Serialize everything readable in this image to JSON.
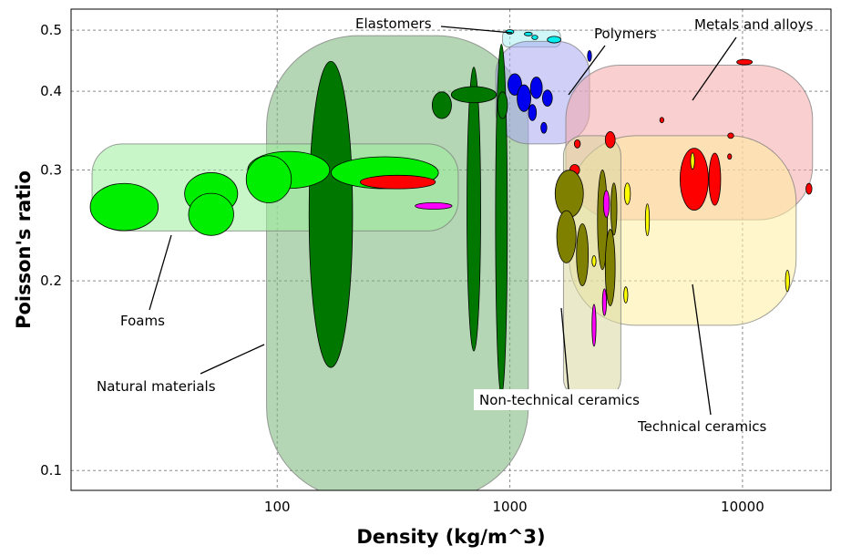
{
  "chart_data": {
    "type": "scatter",
    "title": "",
    "xlabel": "Density (kg/m^3)",
    "ylabel": "Poisson's ratio",
    "x_scale": "log",
    "y_scale": "log",
    "xlim": [
      13,
      24000
    ],
    "ylim": [
      0.093,
      0.54
    ],
    "x_ticks": [
      {
        "value": 100,
        "label": "100"
      },
      {
        "value": 1000,
        "label": "1000"
      },
      {
        "value": 10000,
        "label": "10000"
      }
    ],
    "y_ticks": [
      {
        "value": 0.1,
        "label": "0.1"
      },
      {
        "value": 0.2,
        "label": "0.2"
      },
      {
        "value": 0.3,
        "label": "0.3"
      },
      {
        "value": 0.4,
        "label": "0.4"
      },
      {
        "value": 0.5,
        "label": "0.5"
      }
    ],
    "grid": true,
    "legend": "none",
    "families": [
      {
        "name": "Natural materials",
        "color": "#78b478",
        "density_range": [
          90,
          1200
        ],
        "poisson_range": [
          0.09,
          0.49
        ]
      },
      {
        "name": "Foams",
        "color": "#9aee9a",
        "density_range": [
          16,
          600
        ],
        "poisson_range": [
          0.24,
          0.33
        ]
      },
      {
        "name": "Elastomers",
        "color": "#a8f0f0",
        "density_range": [
          930,
          1650
        ],
        "poisson_range": [
          0.47,
          0.5
        ]
      },
      {
        "name": "Polymers",
        "color": "#a8a8f0",
        "density_range": [
          870,
          2200
        ],
        "poisson_range": [
          0.33,
          0.48
        ]
      },
      {
        "name": "Metals and alloys",
        "color": "#f5a8a8",
        "density_range": [
          1740,
          20000
        ],
        "poisson_range": [
          0.25,
          0.44
        ]
      },
      {
        "name": "Technical ceramics",
        "color": "#fff0a0",
        "density_range": [
          1800,
          17000
        ],
        "poisson_range": [
          0.17,
          0.34
        ]
      },
      {
        "name": "Non-technical ceramics",
        "color": "#d8d8a0",
        "density_range": [
          1700,
          3000
        ],
        "poisson_range": [
          0.13,
          0.34
        ]
      }
    ],
    "materials": [
      {
        "group": "Natural materials",
        "color": "#007800",
        "x": 170,
        "y": 0.255,
        "xr": 1.24,
        "yr": 1.75
      },
      {
        "group": "Natural materials",
        "color": "#007800",
        "x": 700,
        "y": 0.26,
        "xr": 1.07,
        "yr": 1.68
      },
      {
        "group": "Natural materials",
        "color": "#007800",
        "x": 920,
        "y": 0.25,
        "xr": 1.06,
        "yr": 1.9
      },
      {
        "group": "Natural materials",
        "color": "#007800",
        "x": 700,
        "y": 0.395,
        "xr": 1.25,
        "yr": 1.03
      },
      {
        "group": "Natural materials",
        "color": "#007800",
        "x": 510,
        "y": 0.38,
        "xr": 1.1,
        "yr": 1.05
      },
      {
        "group": "Natural materials",
        "color": "#007800",
        "x": 930,
        "y": 0.38,
        "xr": 1.05,
        "yr": 1.05
      },
      {
        "group": "Foams",
        "color": "#00ee00",
        "x": 22,
        "y": 0.262,
        "xr": 1.4,
        "yr": 1.09
      },
      {
        "group": "Foams",
        "color": "#00ee00",
        "x": 52,
        "y": 0.275,
        "xr": 1.3,
        "yr": 1.08
      },
      {
        "group": "Foams",
        "color": "#00ee00",
        "x": 52,
        "y": 0.255,
        "xr": 1.25,
        "yr": 1.08
      },
      {
        "group": "Foams",
        "color": "#00ee00",
        "x": 112,
        "y": 0.3,
        "xr": 1.5,
        "yr": 1.07
      },
      {
        "group": "Foams",
        "color": "#00ee00",
        "x": 92,
        "y": 0.29,
        "xr": 1.25,
        "yr": 1.09
      },
      {
        "group": "Foams",
        "color": "#00ee00",
        "x": 290,
        "y": 0.297,
        "xr": 1.7,
        "yr": 1.06
      },
      {
        "group": "Foams",
        "color": "#ff0000",
        "x": 330,
        "y": 0.287,
        "xr": 1.45,
        "yr": 1.025
      },
      {
        "group": "Foams",
        "color": "#ff00ff",
        "x": 470,
        "y": 0.263,
        "xr": 1.2,
        "yr": 1.012
      },
      {
        "group": "Elastomers",
        "color": "#00eeee",
        "x": 1000,
        "y": 0.497,
        "xr": 1.04,
        "yr": 1.008
      },
      {
        "group": "Elastomers",
        "color": "#00eeee",
        "x": 1200,
        "y": 0.493,
        "xr": 1.04,
        "yr": 1.006
      },
      {
        "group": "Elastomers",
        "color": "#00eeee",
        "x": 1280,
        "y": 0.487,
        "xr": 1.03,
        "yr": 1.008
      },
      {
        "group": "Elastomers",
        "color": "#00eeee",
        "x": 1550,
        "y": 0.483,
        "xr": 1.07,
        "yr": 1.012
      },
      {
        "group": "Polymers",
        "color": "#0000ee",
        "x": 1050,
        "y": 0.41,
        "xr": 1.07,
        "yr": 1.04
      },
      {
        "group": "Polymers",
        "color": "#0000ee",
        "x": 1150,
        "y": 0.39,
        "xr": 1.07,
        "yr": 1.05
      },
      {
        "group": "Polymers",
        "color": "#0000ee",
        "x": 1300,
        "y": 0.405,
        "xr": 1.06,
        "yr": 1.04
      },
      {
        "group": "Polymers",
        "color": "#0000ee",
        "x": 1450,
        "y": 0.39,
        "xr": 1.05,
        "yr": 1.03
      },
      {
        "group": "Polymers",
        "color": "#0000ee",
        "x": 1250,
        "y": 0.37,
        "xr": 1.04,
        "yr": 1.03
      },
      {
        "group": "Polymers",
        "color": "#0000ee",
        "x": 1400,
        "y": 0.35,
        "xr": 1.03,
        "yr": 1.02
      },
      {
        "group": "Polymers",
        "color": "#0000ee",
        "x": 2200,
        "y": 0.455,
        "xr": 1.02,
        "yr": 1.02
      },
      {
        "group": "Metals and alloys",
        "color": "#ff0000",
        "x": 6200,
        "y": 0.29,
        "xr": 1.15,
        "yr": 1.12
      },
      {
        "group": "Metals and alloys",
        "color": "#ff0000",
        "x": 7600,
        "y": 0.29,
        "xr": 1.06,
        "yr": 1.1
      },
      {
        "group": "Metals and alloys",
        "color": "#ff0000",
        "x": 2700,
        "y": 0.335,
        "xr": 1.05,
        "yr": 1.03
      },
      {
        "group": "Metals and alloys",
        "color": "#ff0000",
        "x": 1950,
        "y": 0.33,
        "xr": 1.03,
        "yr": 1.015
      },
      {
        "group": "Metals and alloys",
        "color": "#ff0000",
        "x": 1900,
        "y": 0.3,
        "xr": 1.05,
        "yr": 1.02
      },
      {
        "group": "Metals and alloys",
        "color": "#ff0000",
        "x": 10200,
        "y": 0.445,
        "xr": 1.08,
        "yr": 1.01
      },
      {
        "group": "Metals and alloys",
        "color": "#ff0000",
        "x": 8900,
        "y": 0.34,
        "xr": 1.03,
        "yr": 1.01
      },
      {
        "group": "Metals and alloys",
        "color": "#ff0000",
        "x": 19300,
        "y": 0.28,
        "xr": 1.03,
        "yr": 1.02
      },
      {
        "group": "Metals and alloys",
        "color": "#ff0000",
        "x": 8800,
        "y": 0.315,
        "xr": 1.02,
        "yr": 1.01
      },
      {
        "group": "Metals and alloys",
        "color": "#ff0000",
        "x": 4500,
        "y": 0.36,
        "xr": 1.02,
        "yr": 1.01
      },
      {
        "group": "Technical ceramics",
        "color": "#ffff00",
        "x": 3200,
        "y": 0.275,
        "xr": 1.03,
        "yr": 1.04
      },
      {
        "group": "Technical ceramics",
        "color": "#ffff00",
        "x": 3900,
        "y": 0.25,
        "xr": 1.02,
        "yr": 1.06
      },
      {
        "group": "Technical ceramics",
        "color": "#ffff00",
        "x": 15600,
        "y": 0.2,
        "xr": 1.02,
        "yr": 1.04
      },
      {
        "group": "Technical ceramics",
        "color": "#ffff00",
        "x": 6100,
        "y": 0.31,
        "xr": 1.02,
        "yr": 1.03
      },
      {
        "group": "Technical ceramics",
        "color": "#ffff00",
        "x": 3150,
        "y": 0.19,
        "xr": 1.02,
        "yr": 1.03
      },
      {
        "group": "Technical ceramics",
        "color": "#ffff00",
        "x": 2300,
        "y": 0.215,
        "xr": 1.02,
        "yr": 1.02
      },
      {
        "group": "Non-technical ceramics",
        "color": "#808000",
        "x": 1800,
        "y": 0.275,
        "xr": 1.15,
        "yr": 1.09
      },
      {
        "group": "Non-technical ceramics",
        "color": "#808000",
        "x": 1750,
        "y": 0.235,
        "xr": 1.1,
        "yr": 1.1
      },
      {
        "group": "Non-technical ceramics",
        "color": "#808000",
        "x": 2050,
        "y": 0.22,
        "xr": 1.06,
        "yr": 1.12
      },
      {
        "group": "Non-technical ceramics",
        "color": "#808000",
        "x": 2500,
        "y": 0.25,
        "xr": 1.05,
        "yr": 1.2
      },
      {
        "group": "Non-technical ceramics",
        "color": "#808000",
        "x": 2700,
        "y": 0.21,
        "xr": 1.05,
        "yr": 1.15
      },
      {
        "group": "Non-technical ceramics",
        "color": "#808000",
        "x": 2800,
        "y": 0.26,
        "xr": 1.03,
        "yr": 1.1
      },
      {
        "group": "Non-technical ceramics",
        "color": "#ff00ff",
        "x": 2600,
        "y": 0.265,
        "xr": 1.03,
        "yr": 1.05
      },
      {
        "group": "Non-technical ceramics",
        "color": "#ff00ff",
        "x": 2300,
        "y": 0.17,
        "xr": 1.02,
        "yr": 1.08
      },
      {
        "group": "Non-technical ceramics",
        "color": "#ff00ff",
        "x": 2550,
        "y": 0.185,
        "xr": 1.02,
        "yr": 1.05
      }
    ],
    "annotations": [
      {
        "text": "Elastomers",
        "for": "Elastomers"
      },
      {
        "text": "Polymers",
        "for": "Polymers"
      },
      {
        "text": "Metals and alloys",
        "for": "Metals and alloys"
      },
      {
        "text": "Foams",
        "for": "Foams"
      },
      {
        "text": "Natural materials",
        "for": "Natural materials"
      },
      {
        "text": "Non-technical ceramics",
        "for": "Non-technical ceramics"
      },
      {
        "text": "Technical ceramics",
        "for": "Technical ceramics"
      }
    ]
  }
}
